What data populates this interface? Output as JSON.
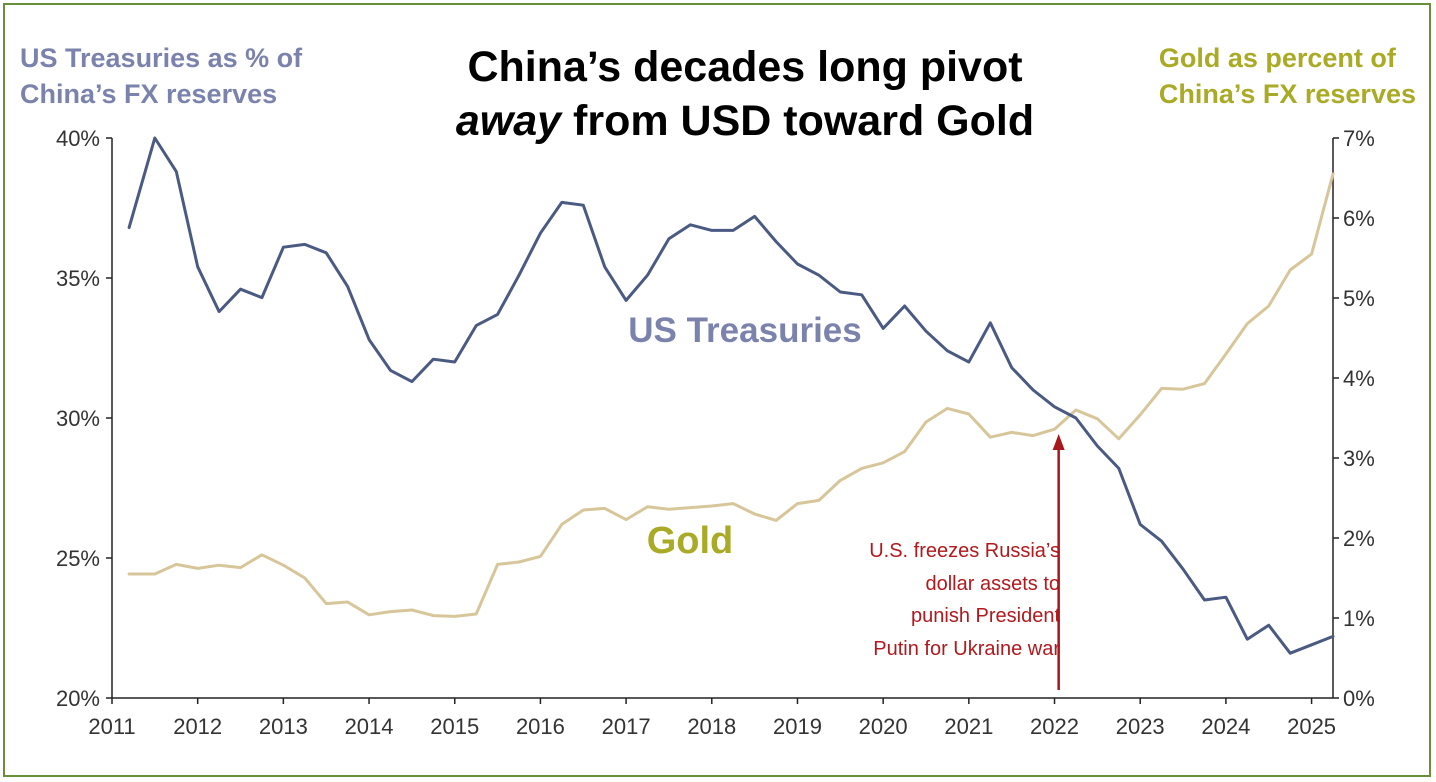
{
  "chart_data": {
    "type": "line",
    "title_line1": "China’s decades long pivot",
    "title_line2_italic": "away",
    "title_line2_rest": " from USD toward Gold",
    "left_axis_title_line1": "US Treasuries as % of",
    "left_axis_title_line2": "China’s FX reserves",
    "right_axis_title_line1": "Gold as percent of",
    "right_axis_title_line2": "China’s FX reserves",
    "left_ylim": [
      20,
      40
    ],
    "right_ylim": [
      0,
      7
    ],
    "xlim": [
      2011,
      2025.25
    ],
    "x_ticks": [
      "2011",
      "2012",
      "2013",
      "2014",
      "2015",
      "2016",
      "2017",
      "2018",
      "2019",
      "2020",
      "2021",
      "2022",
      "2023",
      "2024",
      "2025"
    ],
    "left_ticks": [
      "40%",
      "35%",
      "30%",
      "25%",
      "20%"
    ],
    "right_ticks": [
      "7%",
      "6%",
      "5%",
      "4%",
      "3%",
      "2%",
      "1%",
      "0%"
    ],
    "grid": false,
    "series": [
      {
        "name": "US Treasuries",
        "axis": "left",
        "color": "#4b5a82",
        "x": [
          2011.2,
          2011.5,
          2011.75,
          2012.0,
          2012.25,
          2012.5,
          2012.75,
          2013.0,
          2013.25,
          2013.5,
          2013.75,
          2014.0,
          2014.25,
          2014.5,
          2014.75,
          2015.0,
          2015.25,
          2015.5,
          2015.75,
          2016.0,
          2016.25,
          2016.5,
          2016.75,
          2017.0,
          2017.25,
          2017.5,
          2017.75,
          2018.0,
          2018.25,
          2018.5,
          2018.75,
          2019.0,
          2019.25,
          2019.5,
          2019.75,
          2020.0,
          2020.25,
          2020.5,
          2020.75,
          2021.0,
          2021.25,
          2021.5,
          2021.75,
          2022.0,
          2022.25,
          2022.5,
          2022.75,
          2023.0,
          2023.25,
          2023.5,
          2023.75,
          2024.0,
          2024.25,
          2024.5,
          2024.75,
          2025.0,
          2025.25
        ],
        "values": [
          36.8,
          40.0,
          38.8,
          35.4,
          33.8,
          34.6,
          34.3,
          36.1,
          36.2,
          35.9,
          34.7,
          32.8,
          31.7,
          31.3,
          32.1,
          32.0,
          33.3,
          33.7,
          35.1,
          36.6,
          37.7,
          37.6,
          35.4,
          34.2,
          35.1,
          36.4,
          36.9,
          36.7,
          36.7,
          37.2,
          36.3,
          35.5,
          35.1,
          34.5,
          34.4,
          33.2,
          34.0,
          33.1,
          32.4,
          32.0,
          33.4,
          31.8,
          31.0,
          30.4,
          30.0,
          29.0,
          28.2,
          26.2,
          25.6,
          24.6,
          23.5,
          23.6,
          22.1,
          22.6,
          21.6,
          21.9,
          22.2
        ]
      },
      {
        "name": "Gold",
        "axis": "right",
        "color": "#d8c69b",
        "x": [
          2011.2,
          2011.5,
          2011.75,
          2012.0,
          2012.25,
          2012.5,
          2012.75,
          2013.0,
          2013.25,
          2013.5,
          2013.75,
          2014.0,
          2014.25,
          2014.5,
          2014.75,
          2015.0,
          2015.25,
          2015.5,
          2015.75,
          2016.0,
          2016.25,
          2016.5,
          2016.75,
          2017.0,
          2017.25,
          2017.5,
          2017.75,
          2018.0,
          2018.25,
          2018.5,
          2018.75,
          2019.0,
          2019.25,
          2019.5,
          2019.75,
          2020.0,
          2020.25,
          2020.5,
          2020.75,
          2021.0,
          2021.25,
          2021.5,
          2021.75,
          2022.0,
          2022.25,
          2022.5,
          2022.75,
          2023.0,
          2023.25,
          2023.5,
          2023.75,
          2024.0,
          2024.25,
          2024.5,
          2024.75,
          2025.0,
          2025.25
        ],
        "values": [
          1.55,
          1.55,
          1.67,
          1.62,
          1.66,
          1.63,
          1.79,
          1.66,
          1.5,
          1.18,
          1.2,
          1.04,
          1.08,
          1.1,
          1.03,
          1.02,
          1.05,
          1.67,
          1.7,
          1.77,
          2.17,
          2.35,
          2.37,
          2.23,
          2.39,
          2.36,
          2.38,
          2.4,
          2.43,
          2.3,
          2.22,
          2.43,
          2.47,
          2.72,
          2.87,
          2.94,
          3.08,
          3.45,
          3.62,
          3.55,
          3.26,
          3.32,
          3.28,
          3.36,
          3.6,
          3.49,
          3.24,
          3.54,
          3.87,
          3.86,
          3.93,
          4.3,
          4.68,
          4.9,
          5.35,
          5.55,
          6.55
        ]
      }
    ],
    "series_labels": {
      "treasuries": "US Treasuries",
      "gold": "Gold"
    },
    "annotation": {
      "lines": [
        "U.S. freezes Russia’s",
        "dollar assets to",
        "punish President",
        "Putin for Ukraine war"
      ],
      "x": 2022.2,
      "color": "#a8171b"
    },
    "colors": {
      "treasuries": "#4b5a82",
      "gold": "#d8c69b",
      "left_title": "#7b83ad",
      "right_title": "#a9ab26",
      "treasuries_label": "#7b83ad",
      "gold_label": "#a9ab26",
      "frame": "#6b8e3a"
    }
  }
}
